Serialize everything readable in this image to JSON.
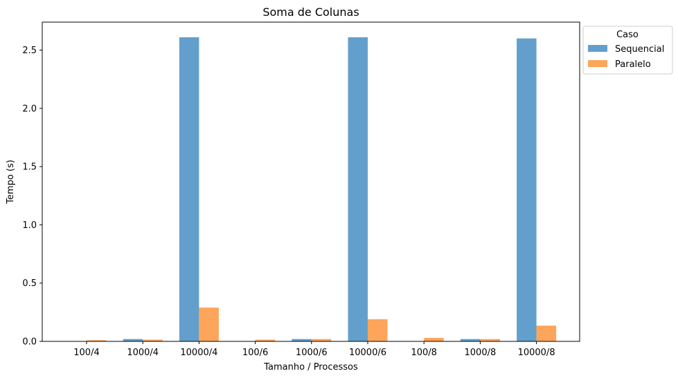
{
  "chart_data": {
    "type": "bar",
    "title": "Soma de Colunas",
    "xlabel": "Tamanho / Processos",
    "ylabel": "Tempo (s)",
    "categories": [
      "100/4",
      "1000/4",
      "10000/4",
      "100/6",
      "1000/6",
      "10000/6",
      "100/8",
      "1000/8",
      "10000/8"
    ],
    "series": [
      {
        "name": "Sequencial",
        "color": "#629fcd",
        "values": [
          0.0,
          0.02,
          2.61,
          0.0,
          0.02,
          2.61,
          0.0,
          0.02,
          2.6
        ]
      },
      {
        "name": "Paralelo",
        "color": "#fda55a",
        "values": [
          0.01,
          0.015,
          0.29,
          0.015,
          0.02,
          0.19,
          0.03,
          0.02,
          0.135
        ]
      }
    ],
    "ylim": [
      0,
      2.74
    ],
    "yticks": [
      0.0,
      0.5,
      1.0,
      1.5,
      2.0,
      2.5
    ],
    "ytick_labels": [
      "0.0",
      "0.5",
      "1.0",
      "1.5",
      "2.0",
      "2.5"
    ],
    "grid": false,
    "legend": {
      "title": "Caso",
      "placement": "outside-top-right"
    }
  }
}
